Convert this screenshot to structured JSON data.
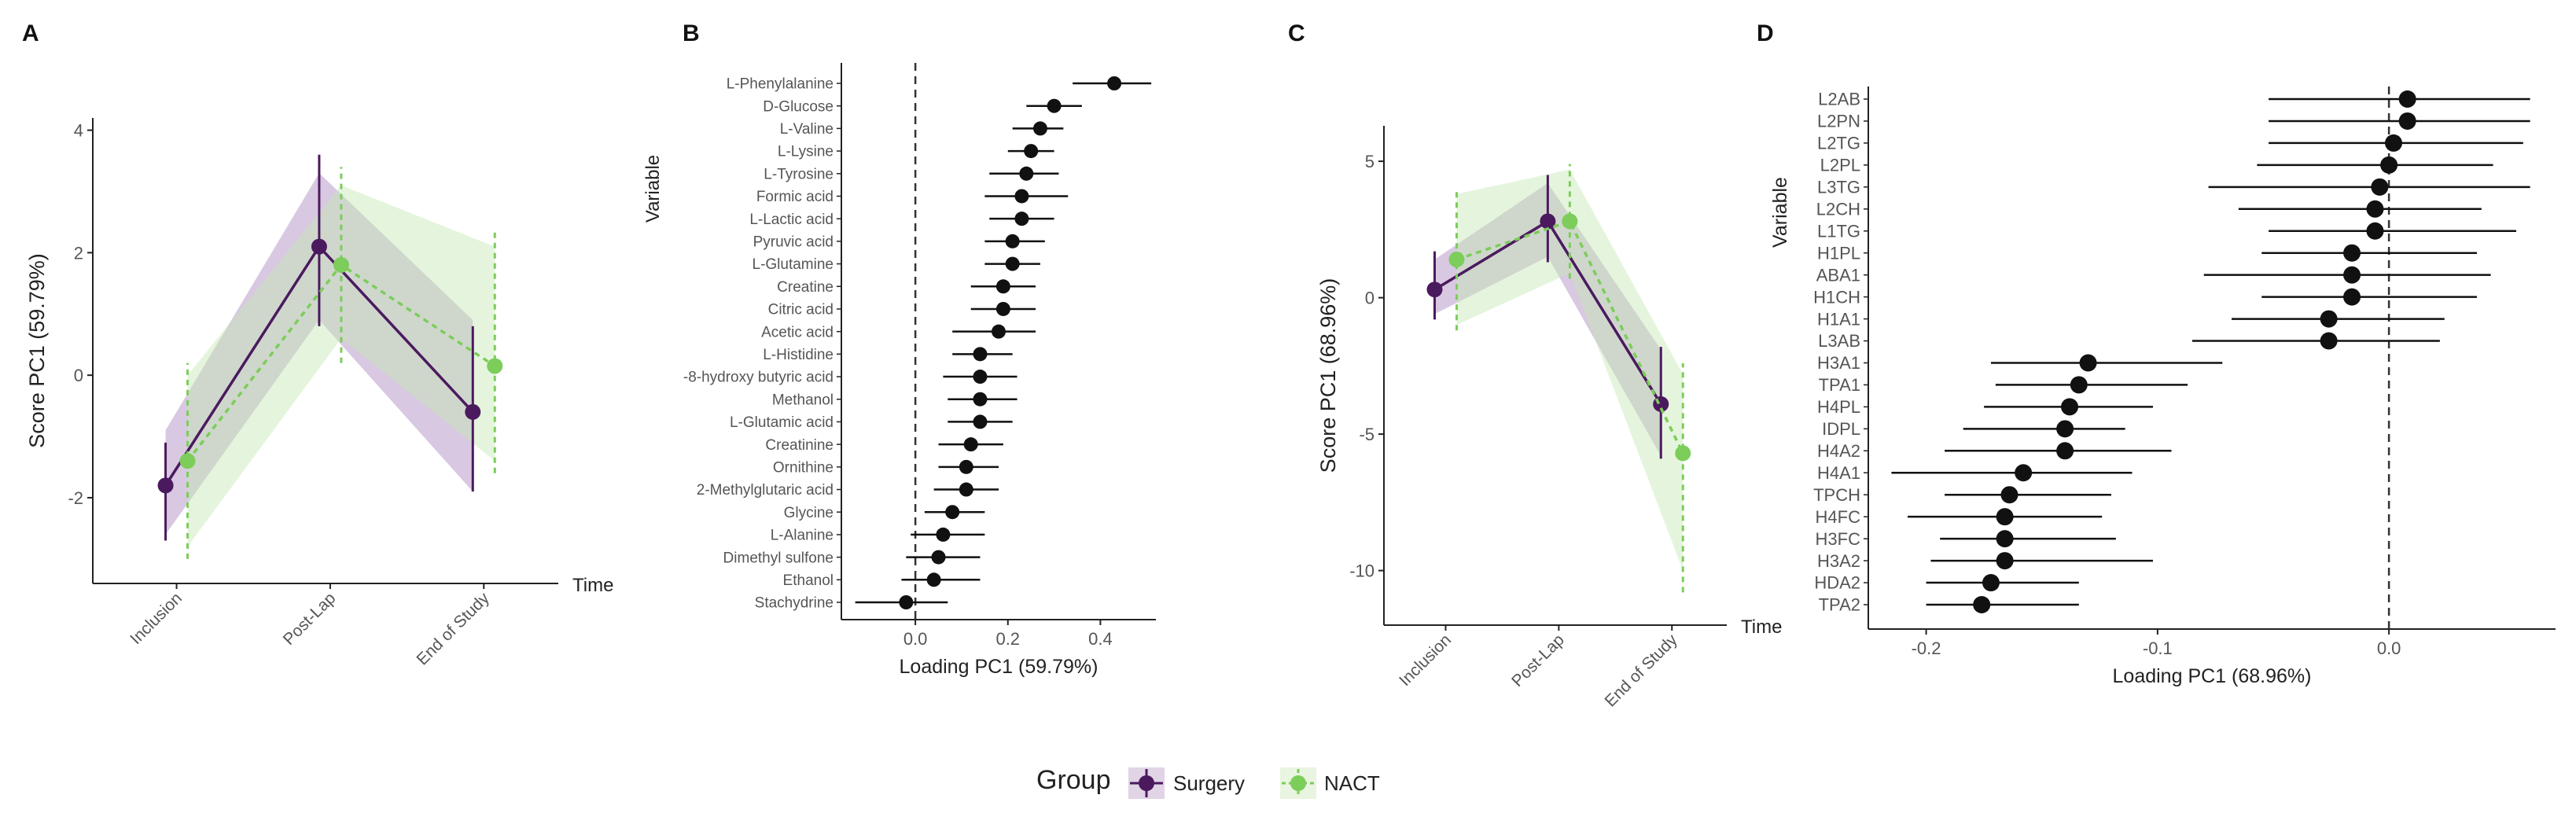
{
  "panel_letters": [
    "A",
    "B",
    "C",
    "D"
  ],
  "legend": {
    "title": "Group",
    "items": [
      {
        "label": "Surgery",
        "color": "#4b1a5e"
      },
      {
        "label": "NACT",
        "color": "#7ccd5a"
      }
    ]
  },
  "chart_data": [
    {
      "panel": "A",
      "type": "line",
      "ylabel": "Score PC1 (59.79%)",
      "xlabel": "Time",
      "categories": [
        "Inclusion",
        "Post-Lap",
        "End of Study"
      ],
      "ylim": [
        -3.4,
        4.2
      ],
      "yticks": [
        -2,
        0,
        2,
        4
      ],
      "grid": false,
      "series": [
        {
          "name": "Surgery",
          "values": [
            -1.8,
            2.1,
            -0.6
          ],
          "lower": [
            -2.7,
            0.8,
            -1.9
          ],
          "upper": [
            -1.1,
            3.6,
            0.8
          ],
          "band_lower": [
            -2.6,
            0.9,
            -1.9
          ],
          "band_upper": [
            -0.9,
            3.3,
            0.9
          ]
        },
        {
          "name": "NACT",
          "values": [
            -1.4,
            1.8,
            0.15
          ],
          "lower": [
            -3.0,
            0.2,
            -1.6
          ],
          "upper": [
            0.2,
            3.4,
            2.4
          ],
          "band_lower": [
            -2.8,
            0.6,
            -1.4
          ],
          "band_upper": [
            0.0,
            3.1,
            2.1
          ]
        }
      ]
    },
    {
      "panel": "B",
      "type": "scatter",
      "ylabel": "Variable",
      "xlabel": "Loading PC1 (59.79%)",
      "xlim": [
        -0.16,
        0.52
      ],
      "xticks": [
        0.0,
        0.2,
        0.4
      ],
      "xtick_labels": [
        "0.0",
        "0.2",
        "0.4"
      ],
      "variables": [
        {
          "name": "L-Phenylalanine",
          "value": 0.43,
          "lo": 0.34,
          "hi": 0.51
        },
        {
          "name": "D-Glucose",
          "value": 0.3,
          "lo": 0.24,
          "hi": 0.36
        },
        {
          "name": "L-Valine",
          "value": 0.27,
          "lo": 0.21,
          "hi": 0.32
        },
        {
          "name": "L-Lysine",
          "value": 0.25,
          "lo": 0.2,
          "hi": 0.3
        },
        {
          "name": "L-Tyrosine",
          "value": 0.24,
          "lo": 0.16,
          "hi": 0.31
        },
        {
          "name": "Formic acid",
          "value": 0.23,
          "lo": 0.15,
          "hi": 0.33
        },
        {
          "name": "L-Lactic acid",
          "value": 0.23,
          "lo": 0.16,
          "hi": 0.3
        },
        {
          "name": "Pyruvic acid",
          "value": 0.21,
          "lo": 0.15,
          "hi": 0.28
        },
        {
          "name": "L-Glutamine",
          "value": 0.21,
          "lo": 0.15,
          "hi": 0.27
        },
        {
          "name": "Creatine",
          "value": 0.19,
          "lo": 0.12,
          "hi": 0.26
        },
        {
          "name": "Citric acid",
          "value": 0.19,
          "lo": 0.12,
          "hi": 0.26
        },
        {
          "name": "Acetic acid",
          "value": 0.18,
          "lo": 0.08,
          "hi": 0.26
        },
        {
          "name": "L-Histidine",
          "value": 0.14,
          "lo": 0.08,
          "hi": 0.21
        },
        {
          "name": "-8-hydroxy butyric acid",
          "value": 0.14,
          "lo": 0.06,
          "hi": 0.22
        },
        {
          "name": "Methanol",
          "value": 0.14,
          "lo": 0.07,
          "hi": 0.22
        },
        {
          "name": "L-Glutamic acid",
          "value": 0.14,
          "lo": 0.07,
          "hi": 0.21
        },
        {
          "name": "Creatinine",
          "value": 0.12,
          "lo": 0.05,
          "hi": 0.19
        },
        {
          "name": "Ornithine",
          "value": 0.11,
          "lo": 0.05,
          "hi": 0.18
        },
        {
          "name": "2-Methylglutaric acid",
          "value": 0.11,
          "lo": 0.04,
          "hi": 0.18
        },
        {
          "name": "Glycine",
          "value": 0.08,
          "lo": 0.02,
          "hi": 0.15
        },
        {
          "name": "L-Alanine",
          "value": 0.06,
          "lo": -0.01,
          "hi": 0.15
        },
        {
          "name": "Dimethyl sulfone",
          "value": 0.05,
          "lo": -0.02,
          "hi": 0.14
        },
        {
          "name": "Ethanol",
          "value": 0.04,
          "lo": -0.03,
          "hi": 0.14
        },
        {
          "name": "Stachydrine",
          "value": -0.02,
          "lo": -0.13,
          "hi": 0.07
        }
      ]
    },
    {
      "panel": "C",
      "type": "line",
      "ylabel": "Score PC1 (68.96%)",
      "xlabel": "Time",
      "categories": [
        "Inclusion",
        "Post-Lap",
        "End of Study"
      ],
      "ylim": [
        -12,
        6.3
      ],
      "yticks": [
        -10,
        -5,
        0,
        5
      ],
      "grid": false,
      "series": [
        {
          "name": "Surgery",
          "values": [
            0.3,
            2.8,
            -3.9
          ],
          "lower": [
            -0.8,
            1.3,
            -5.9
          ],
          "upper": [
            1.7,
            4.5,
            -1.8
          ],
          "band_lower": [
            -0.6,
            1.5,
            -5.8
          ],
          "band_upper": [
            1.4,
            4.2,
            -1.9
          ]
        },
        {
          "name": "NACT",
          "values": [
            1.4,
            2.8,
            -5.7
          ],
          "lower": [
            -1.2,
            0.7,
            -10.8
          ],
          "upper": [
            4.0,
            4.9,
            -2.4
          ],
          "band_lower": [
            -1.0,
            0.9,
            -10.0
          ],
          "band_upper": [
            3.8,
            4.7,
            -2.8
          ]
        }
      ]
    },
    {
      "panel": "D",
      "type": "scatter",
      "ylabel": "Variable",
      "xlabel": "Loading PC1 (68.96%)",
      "xlim": [
        -0.225,
        0.072
      ],
      "xticks": [
        -0.2,
        -0.1,
        0.0
      ],
      "xtick_labels": [
        "-0.2",
        "-0.1",
        "0.0"
      ],
      "variables": [
        {
          "name": "L2AB",
          "value": 0.008,
          "lo": -0.052,
          "hi": 0.061
        },
        {
          "name": "L2PN",
          "value": 0.008,
          "lo": -0.052,
          "hi": 0.061
        },
        {
          "name": "L2TG",
          "value": 0.002,
          "lo": -0.052,
          "hi": 0.058
        },
        {
          "name": "L2PL",
          "value": 0.0,
          "lo": -0.057,
          "hi": 0.045
        },
        {
          "name": "L3TG",
          "value": -0.004,
          "lo": -0.078,
          "hi": 0.061
        },
        {
          "name": "L2CH",
          "value": -0.006,
          "lo": -0.065,
          "hi": 0.04
        },
        {
          "name": "L1TG",
          "value": -0.006,
          "lo": -0.052,
          "hi": 0.055
        },
        {
          "name": "H1PL",
          "value": -0.016,
          "lo": -0.055,
          "hi": 0.038
        },
        {
          "name": "ABA1",
          "value": -0.016,
          "lo": -0.08,
          "hi": 0.044
        },
        {
          "name": "H1CH",
          "value": -0.016,
          "lo": -0.055,
          "hi": 0.038
        },
        {
          "name": "H1A1",
          "value": -0.026,
          "lo": -0.068,
          "hi": 0.024
        },
        {
          "name": "L3AB",
          "value": -0.026,
          "lo": -0.085,
          "hi": 0.022
        },
        {
          "name": "H3A1",
          "value": -0.13,
          "lo": -0.172,
          "hi": -0.072
        },
        {
          "name": "TPA1",
          "value": -0.134,
          "lo": -0.17,
          "hi": -0.087
        },
        {
          "name": "H4PL",
          "value": -0.138,
          "lo": -0.175,
          "hi": -0.102
        },
        {
          "name": "IDPL",
          "value": -0.14,
          "lo": -0.184,
          "hi": -0.114
        },
        {
          "name": "H4A2",
          "value": -0.14,
          "lo": -0.192,
          "hi": -0.094
        },
        {
          "name": "H4A1",
          "value": -0.158,
          "lo": -0.215,
          "hi": -0.111
        },
        {
          "name": "TPCH",
          "value": -0.164,
          "lo": -0.192,
          "hi": -0.12
        },
        {
          "name": "H4FC",
          "value": -0.166,
          "lo": -0.208,
          "hi": -0.124
        },
        {
          "name": "H3FC",
          "value": -0.166,
          "lo": -0.194,
          "hi": -0.118
        },
        {
          "name": "H3A2",
          "value": -0.166,
          "lo": -0.198,
          "hi": -0.102
        },
        {
          "name": "HDA2",
          "value": -0.172,
          "lo": -0.2,
          "hi": -0.134
        },
        {
          "name": "TPA2",
          "value": -0.176,
          "lo": -0.2,
          "hi": -0.134
        }
      ]
    }
  ]
}
